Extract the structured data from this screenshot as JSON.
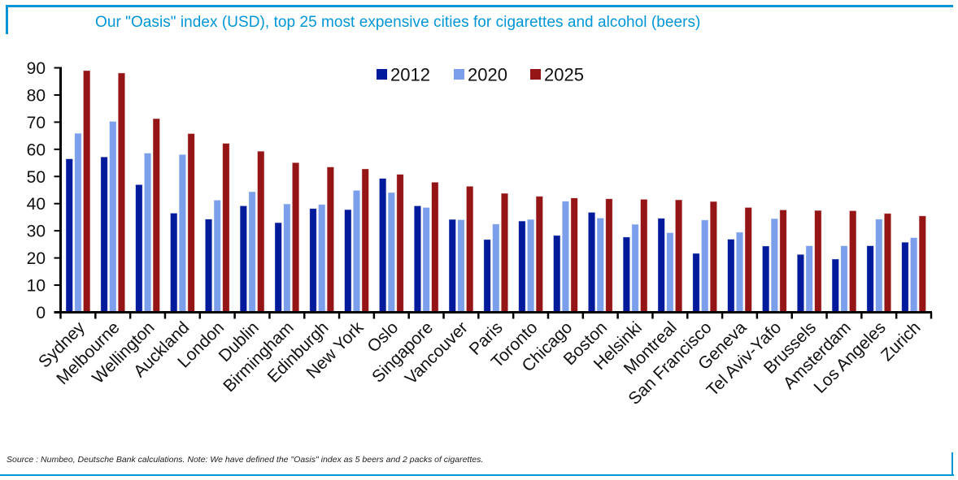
{
  "title": "Our \"Oasis\" index (USD), top 25 most expensive cities for cigarettes and alcohol (beers)",
  "source_note": "Source : Numbeo, Deutsche Bank calculations. Note: We have defined the \"Oasis\" index as 5 beers and 2 packs of cigarettes.",
  "colors": {
    "frame": "#0096d6",
    "title": "#0096d6"
  },
  "chart_data": {
    "type": "bar",
    "title": "Our \"Oasis\" index (USD), top 25 most expensive cities for cigarettes and alcohol (beers)",
    "xlabel": "",
    "ylabel": "",
    "ylim": [
      0,
      90
    ],
    "yticks": [
      0,
      10,
      20,
      30,
      40,
      50,
      60,
      70,
      80,
      90
    ],
    "grid": false,
    "legend_position": "top-center",
    "categories": [
      "Sydney",
      "Melbourne",
      "Wellington",
      "Auckland",
      "London",
      "Dublin",
      "Birmingham",
      "Edinburgh",
      "New York",
      "Oslo",
      "Singapore",
      "Vancouver",
      "Paris",
      "Toronto",
      "Chicago",
      "Boston",
      "Helsinki",
      "Montreal",
      "San Francisco",
      "Geneva",
      "Tel Aviv-Yafo",
      "Brussels",
      "Amsterdam",
      "Los Angeles",
      "Zurich"
    ],
    "series": [
      {
        "name": "2012",
        "color": "#001a9c",
        "values": [
          56.5,
          57.2,
          47.0,
          36.5,
          34.3,
          39.2,
          33.0,
          38.2,
          37.8,
          49.3,
          39.2,
          34.2,
          26.8,
          33.6,
          28.3,
          36.8,
          27.7,
          34.6,
          21.7,
          26.9,
          24.4,
          21.3,
          19.6,
          24.5,
          25.8
        ]
      },
      {
        "name": "2020",
        "color": "#7b9fea",
        "values": [
          65.9,
          70.3,
          58.6,
          58.1,
          41.3,
          44.4,
          39.9,
          39.7,
          44.9,
          44.1,
          38.6,
          34.1,
          32.5,
          34.2,
          40.9,
          34.7,
          32.4,
          29.3,
          34.0,
          29.5,
          34.5,
          24.5,
          24.5,
          34.3,
          27.5
        ]
      },
      {
        "name": "2025",
        "color": "#951416",
        "values": [
          89.0,
          88.1,
          71.3,
          65.8,
          62.2,
          59.3,
          55.1,
          53.5,
          52.8,
          50.8,
          47.9,
          46.4,
          43.8,
          42.7,
          42.1,
          41.8,
          41.6,
          41.4,
          40.8,
          38.6,
          37.7,
          37.5,
          37.4,
          36.4,
          35.5
        ]
      }
    ]
  }
}
